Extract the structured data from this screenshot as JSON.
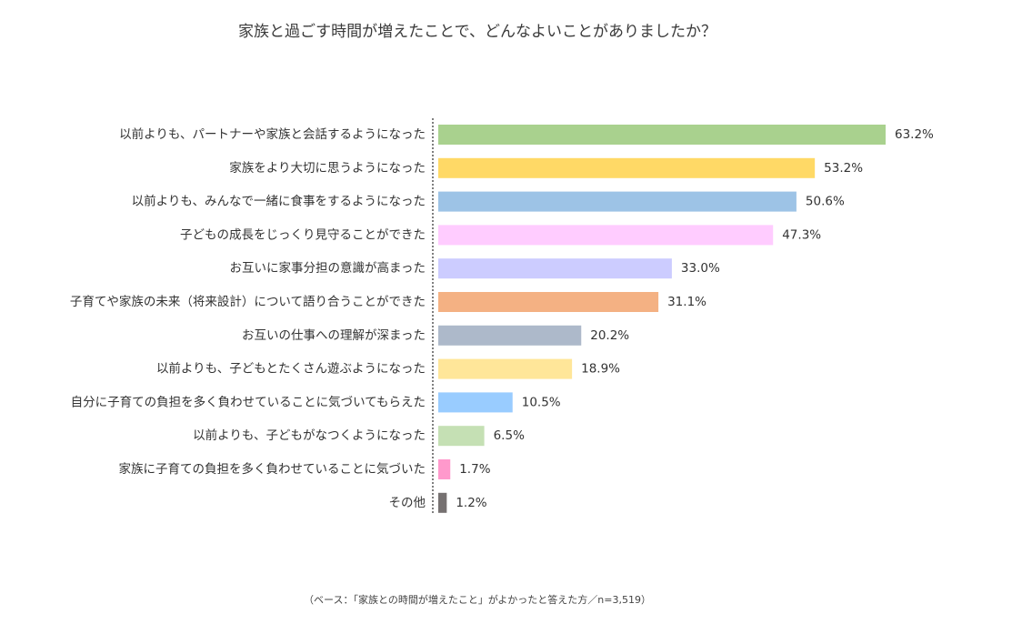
{
  "chart_data": {
    "type": "bar",
    "orientation": "horizontal",
    "title": "家族と過ごす時間が増えたことで、どんなよいことがありましたか？",
    "categories": [
      "以前よりも、パートナーや家族と会話するようになった",
      "家族をより大切に思うようになった",
      "以前よりも、みんなで一緒に食事をするようになった",
      "子どもの成長をじっくり見守ることができた",
      "お互いに家事分担の意識が高まった",
      "子育てや家族の未来（将来設計）について語り合うことができた",
      "お互いの仕事への理解が深まった",
      "以前よりも、子どもとたくさん遊ぶようになった",
      "自分に子育ての負担を多く負わせていることに気づいてもらえた",
      "以前よりも、子どもがなつくようになった",
      "家族に子育ての負担を多く負わせていることに気づいた",
      "その他"
    ],
    "values": [
      63.2,
      53.2,
      50.6,
      47.3,
      33.0,
      31.1,
      20.2,
      18.9,
      10.5,
      6.5,
      1.7,
      1.2
    ],
    "value_labels": [
      "63.2%",
      "53.2%",
      "50.6%",
      "47.3%",
      "33.0%",
      "31.1%",
      "20.2%",
      "18.9%",
      "10.5%",
      "6.5%",
      "1.7%",
      "1.2%"
    ],
    "colors": [
      "#a9d18e",
      "#ffd966",
      "#9dc3e6",
      "#ffccff",
      "#ccccff",
      "#f4b183",
      "#adb9ca",
      "#ffe699",
      "#99ccff",
      "#c5e0b4",
      "#ff99cc",
      "#767171"
    ],
    "xlim": [
      0,
      63.2
    ],
    "grid": false,
    "legend": "none"
  },
  "footnote": "（ベース：「家族との時間が増えたこと」がよかったと答えた方／n=3,519）"
}
